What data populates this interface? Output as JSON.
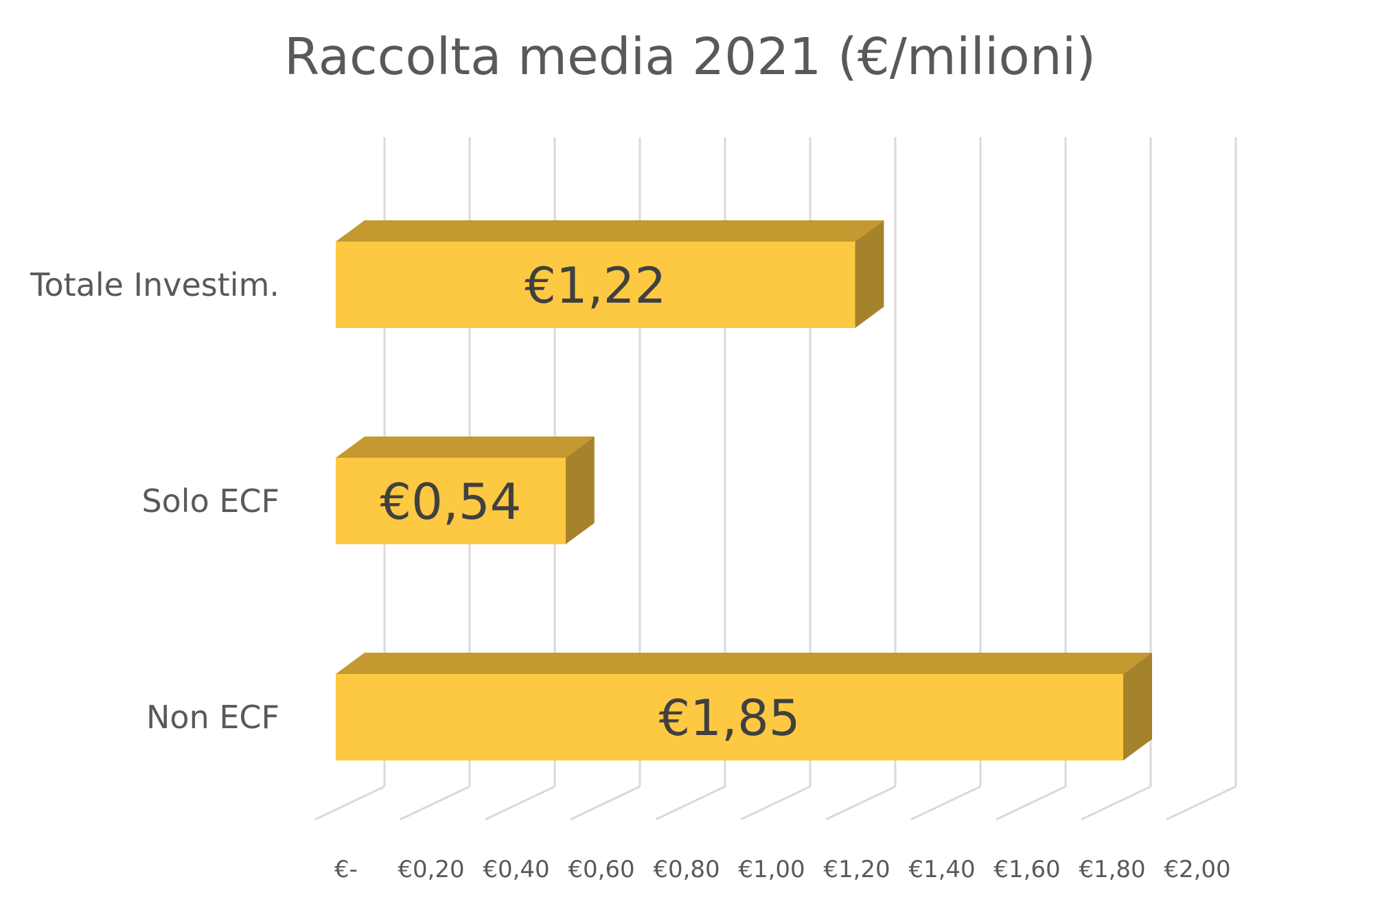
{
  "chart_data": {
    "type": "bar",
    "orientation": "horizontal",
    "style": "3d",
    "title": "Raccolta media 2021 (€/milioni)",
    "xlabel": "",
    "ylabel": "",
    "categories": [
      "Totale Investim.",
      "Solo ECF",
      "Non ECF"
    ],
    "values": [
      1.22,
      0.54,
      1.85
    ],
    "data_labels": [
      "€1,22",
      "€0,54",
      "€1,85"
    ],
    "xlim": [
      0,
      2.0
    ],
    "x_ticks": [
      0,
      0.2,
      0.4,
      0.6,
      0.8,
      1.0,
      1.2,
      1.4,
      1.6,
      1.8,
      2.0
    ],
    "x_tick_labels": [
      "€-",
      "€0,20",
      "€0,40",
      "€0,60",
      "€0,80",
      "€1,00",
      "€1,20",
      "€1,40",
      "€1,60",
      "€1,80",
      "€2,00"
    ],
    "grid": true,
    "legend": "none",
    "colors": {
      "bar_front": "#FDC942",
      "bar_top": "#C4992F",
      "bar_side": "#A5832B",
      "grid": "#D9D9D9",
      "text": "#595959"
    }
  }
}
